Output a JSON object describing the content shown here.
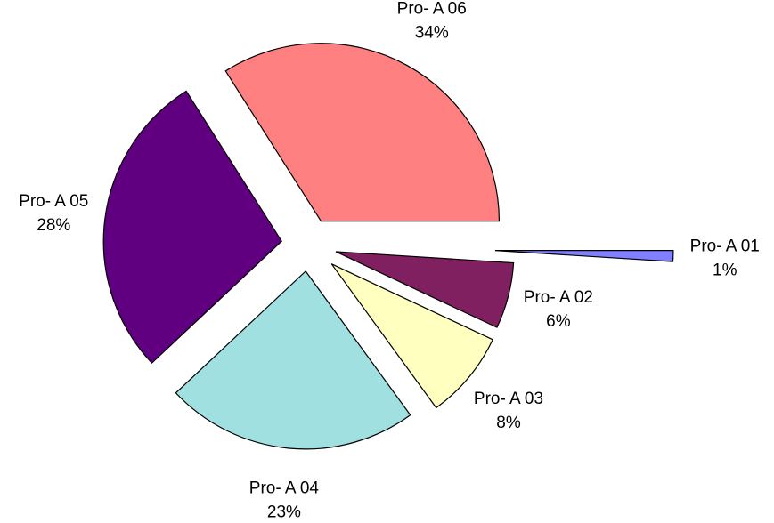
{
  "chart_data": {
    "type": "pie",
    "categories": [
      "Pro- A 01",
      "Pro- A 02",
      "Pro- A 03",
      "Pro- A 04",
      "Pro- A 05",
      "Pro- A 06"
    ],
    "values": [
      1,
      6,
      8,
      23,
      28,
      34
    ],
    "value_labels": [
      "1%",
      "6%",
      "8%",
      "23%",
      "28%",
      "34%"
    ],
    "colors": [
      "#8080ff",
      "#802060",
      "#ffffc0",
      "#a0e0e0",
      "#600080",
      "#ff8080"
    ]
  }
}
